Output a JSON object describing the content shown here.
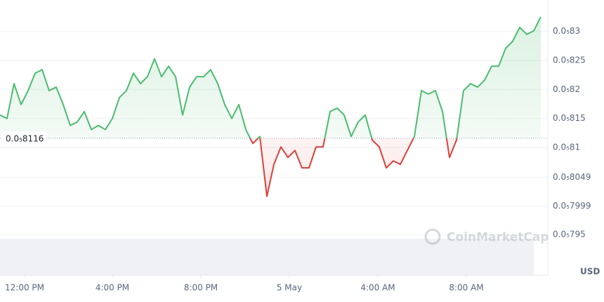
{
  "chart_data": {
    "type": "line",
    "brand": "CoinMarketCap",
    "currency": "USD",
    "baseline": {
      "value": 8.116e-06,
      "label": "0.0₅8116"
    },
    "up_color": "#4cbb6f",
    "down_color": "#d9413a",
    "grid": true,
    "xlim": [
      0,
      77.5
    ],
    "xticks": [
      {
        "value": 3.5,
        "label": "12:00 PM"
      },
      {
        "value": 16,
        "label": "4:00 PM"
      },
      {
        "value": 28.6,
        "label": "8:00 PM"
      },
      {
        "value": 41.2,
        "label": "5 May"
      },
      {
        "value": 53.8,
        "label": "4:00 AM"
      },
      {
        "value": 66.4,
        "label": "8:00 AM"
      }
    ],
    "ylim": [
      7.88e-06,
      8.348e-06
    ],
    "yticks": [
      {
        "value": 8.3e-06,
        "label": "0.0₅83"
      },
      {
        "value": 8.25e-06,
        "label": "0.0₅825"
      },
      {
        "value": 8.2e-06,
        "label": "0.0₅82"
      },
      {
        "value": 8.15e-06,
        "label": "0.0₅815"
      },
      {
        "value": 8.1e-06,
        "label": "0.0₅81"
      },
      {
        "value": 8.049e-06,
        "label": "0.0₅8049"
      },
      {
        "value": 7.999e-06,
        "label": "0.0₅7999"
      },
      {
        "value": 7.95e-06,
        "label": "0.0₅795"
      }
    ],
    "x": [
      0,
      1,
      2,
      3,
      4,
      5,
      6,
      7,
      8,
      9,
      10,
      11,
      12,
      13,
      14,
      15,
      16,
      17,
      18,
      19,
      20,
      21,
      22,
      23,
      24,
      25,
      26,
      27,
      28,
      29,
      30,
      31,
      32,
      33,
      34,
      35,
      36,
      37,
      38,
      39,
      40,
      41,
      42,
      43,
      44,
      45,
      46,
      47,
      48,
      49,
      50,
      51,
      52,
      53,
      54,
      55,
      56,
      57,
      58,
      59,
      60,
      61,
      62,
      63,
      64,
      65,
      66,
      67,
      68,
      69,
      70,
      71,
      72,
      73,
      74,
      75,
      76,
      77
    ],
    "values": [
      8.156e-06,
      8.15e-06,
      8.21e-06,
      8.174e-06,
      8.198e-06,
      8.228e-06,
      8.234e-06,
      8.198e-06,
      8.204e-06,
      8.174e-06,
      8.138e-06,
      8.144e-06,
      8.162e-06,
      8.131e-06,
      8.138e-06,
      8.131e-06,
      8.15e-06,
      8.186e-06,
      8.198e-06,
      8.228e-06,
      8.21e-06,
      8.222e-06,
      8.253e-06,
      8.222e-06,
      8.24e-06,
      8.222e-06,
      8.156e-06,
      8.204e-06,
      8.222e-06,
      8.222e-06,
      8.234e-06,
      8.21e-06,
      8.174e-06,
      8.15e-06,
      8.174e-06,
      8.131e-06,
      8.107e-06,
      8.119e-06,
      8.016e-06,
      8.071e-06,
      8.101e-06,
      8.083e-06,
      8.095e-06,
      8.065e-06,
      8.065e-06,
      8.101e-06,
      8.101e-06,
      8.162e-06,
      8.168e-06,
      8.156e-06,
      8.119e-06,
      8.144e-06,
      8.156e-06,
      8.113e-06,
      8.101e-06,
      8.065e-06,
      8.077e-06,
      8.071e-06,
      8.095e-06,
      8.119e-06,
      8.198e-06,
      8.192e-06,
      8.198e-06,
      8.162e-06,
      8.083e-06,
      8.113e-06,
      8.198e-06,
      8.21e-06,
      8.204e-06,
      8.216e-06,
      8.24e-06,
      8.24e-06,
      8.271e-06,
      8.283e-06,
      8.307e-06,
      8.295e-06,
      8.301e-06,
      8.325e-06
    ]
  }
}
